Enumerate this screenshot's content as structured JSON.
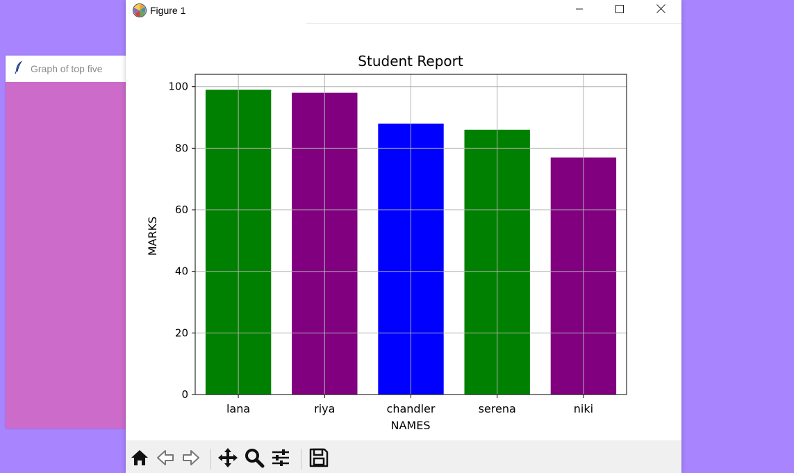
{
  "background_window": {
    "title": "Graph of top five",
    "icon": "feather-icon",
    "content_color": "#cc6bca"
  },
  "window": {
    "title": "Figure 1",
    "icon": "matplotlib-logo-icon",
    "controls": [
      "minimize-icon",
      "maximize-icon",
      "close-icon"
    ]
  },
  "toolbar": {
    "buttons": [
      "home-icon",
      "back-arrow-icon",
      "forward-arrow-icon",
      "pan-icon",
      "zoom-icon",
      "configure-subplots-icon",
      "save-icon"
    ]
  },
  "chart_data": {
    "type": "bar",
    "title": "Student Report",
    "xlabel": "NAMES",
    "ylabel": "MARKS",
    "categories": [
      "lana",
      "riya",
      "chandler",
      "serena",
      "niki"
    ],
    "values": [
      99,
      98,
      88,
      86,
      77
    ],
    "colors": [
      "#008000",
      "#800080",
      "#0000ff",
      "#008000",
      "#800080"
    ],
    "ylim": [
      0,
      104
    ],
    "yticks": [
      0,
      20,
      40,
      60,
      80,
      100
    ],
    "grid": true
  }
}
